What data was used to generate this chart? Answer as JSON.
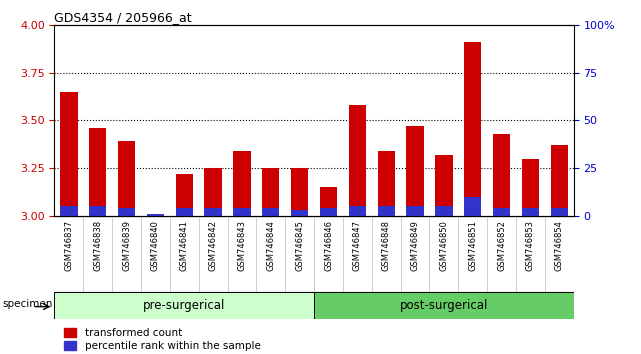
{
  "title": "GDS4354 / 205966_at",
  "samples": [
    "GSM746837",
    "GSM746838",
    "GSM746839",
    "GSM746840",
    "GSM746841",
    "GSM746842",
    "GSM746843",
    "GSM746844",
    "GSM746845",
    "GSM746846",
    "GSM746847",
    "GSM746848",
    "GSM746849",
    "GSM746850",
    "GSM746851",
    "GSM746852",
    "GSM746853",
    "GSM746854"
  ],
  "red_values": [
    3.65,
    3.46,
    3.39,
    3.0,
    3.22,
    3.25,
    3.34,
    3.25,
    3.25,
    3.15,
    3.58,
    3.34,
    3.47,
    3.32,
    3.91,
    3.43,
    3.3,
    3.37
  ],
  "blue_values": [
    5,
    5,
    4,
    1,
    4,
    4,
    4,
    4,
    3,
    4,
    5,
    5,
    5,
    5,
    10,
    4,
    4,
    4
  ],
  "base": 3.0,
  "ylim": [
    3.0,
    4.0
  ],
  "y2lim": [
    0,
    100
  ],
  "yticks": [
    3.0,
    3.25,
    3.5,
    3.75,
    4.0
  ],
  "y2ticks": [
    0,
    25,
    50,
    75,
    100
  ],
  "grid_values": [
    3.25,
    3.5,
    3.75
  ],
  "bar_color": "#cc0000",
  "blue_color": "#3333cc",
  "group1_label": "pre-surgerical",
  "group2_label": "post-surgerical",
  "group1_n": 9,
  "group2_n": 9,
  "group1_color": "#ccffcc",
  "group2_color": "#66cc66",
  "legend1": "transformed count",
  "legend2": "percentile rank within the sample",
  "specimen_label": "specimen",
  "bar_width": 0.6,
  "figure_bg": "#ffffff",
  "axes_bg": "#ffffff",
  "xtick_bg": "#d8d8d8",
  "tick_label_color_left": "#cc0000",
  "tick_label_color_right": "#0000cc"
}
